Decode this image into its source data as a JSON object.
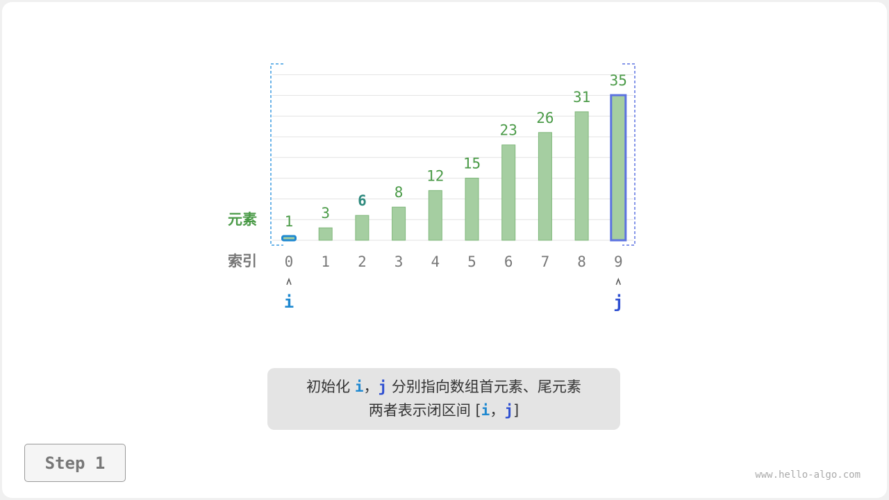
{
  "diagram": {
    "values_label": "元素",
    "index_label": "索引",
    "values": [
      1,
      3,
      6,
      8,
      12,
      15,
      23,
      26,
      31,
      35
    ],
    "indices": [
      "0",
      "1",
      "2",
      "3",
      "4",
      "5",
      "6",
      "7",
      "8",
      "9"
    ],
    "highlight_value_index": 2,
    "pointer_i": {
      "label": "i",
      "index": 0,
      "color": "#1e88d0"
    },
    "pointer_j": {
      "label": "j",
      "index": 9,
      "color": "#2e4fd1"
    },
    "colors": {
      "bar_fill": "#a5cea1",
      "bar_stroke": "#7fb77a",
      "value_text": "#4a9a47",
      "highlight_text": "#2f8a7e",
      "index_text": "#777777",
      "label_values": "#4a9a47",
      "label_index": "#777777"
    }
  },
  "caption": {
    "line1_pre": "初始化 ",
    "i": "i",
    "comma": "，",
    "j": "j",
    "line1_post": " 分别指向数组首元素、尾元素",
    "line2_pre": "两者表示闭区间 [",
    "line2_comma": "，",
    "line2_post": "]"
  },
  "step_label": "Step 1",
  "watermark": "www.hello-algo.com"
}
